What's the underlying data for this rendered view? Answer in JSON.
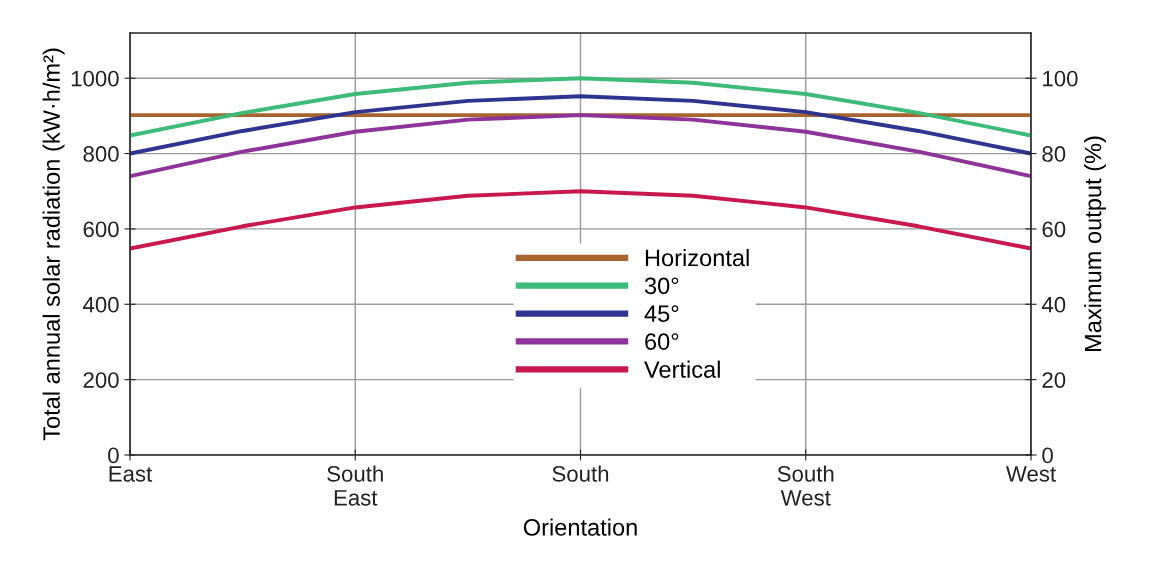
{
  "chart_data": {
    "type": "line",
    "xlabel": "Orientation",
    "ylabel": "Total annual solar radiation (kW·h/m²)",
    "y2label": "Maximum output (%)",
    "categories": [
      "East",
      null,
      "South\nEast",
      null,
      "South",
      null,
      "South\nWest",
      null,
      "West"
    ],
    "ylim": [
      0,
      1120
    ],
    "yticks": [
      0,
      200,
      400,
      600,
      800,
      1000
    ],
    "y2lim": [
      0,
      112
    ],
    "y2ticks": [
      0,
      20,
      40,
      60,
      80,
      100
    ],
    "grid": true,
    "legend": "center",
    "marker": "none",
    "line_style": "solid",
    "series": [
      {
        "name": "Horizontal",
        "color": "#a8642e",
        "values": [
          902,
          902,
          902,
          902,
          902,
          902,
          902,
          902,
          902
        ]
      },
      {
        "name": "30°",
        "color": "#3dbb78",
        "values": [
          848,
          908,
          958,
          988,
          1000,
          988,
          958,
          908,
          848
        ]
      },
      {
        "name": "45°",
        "color": "#2d3590",
        "values": [
          800,
          860,
          910,
          940,
          952,
          940,
          910,
          860,
          800
        ]
      },
      {
        "name": "60°",
        "color": "#8e3399",
        "values": [
          740,
          805,
          858,
          890,
          902,
          890,
          858,
          805,
          740
        ]
      },
      {
        "name": "Vertical",
        "color": "#c8184e",
        "values": [
          548,
          607,
          657,
          688,
          700,
          688,
          657,
          607,
          548
        ]
      }
    ]
  }
}
